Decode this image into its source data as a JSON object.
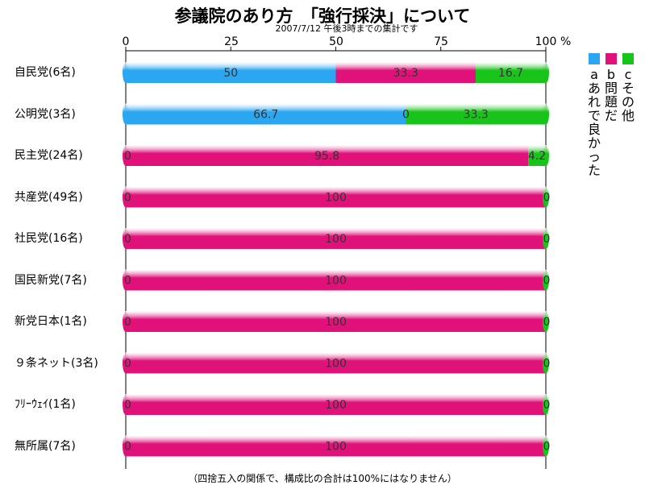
{
  "title": "参議院のあり方　「強行採決」について",
  "subtitle": "2007/7/12 午後3時までの集計です",
  "footnote": "（四捨五入の関係で、構成比の合計は100%にはなりません）",
  "colors": {
    "a": "#2aa7f0",
    "b": "#e0127a",
    "c": "#18c41a"
  },
  "legend": [
    {
      "key": "a",
      "letter": "a",
      "text": "あれで良かった"
    },
    {
      "key": "b",
      "letter": "b",
      "text": "問題だ"
    },
    {
      "key": "c",
      "letter": "c",
      "text": "その他"
    }
  ],
  "chart_data": {
    "type": "bar",
    "orientation": "horizontal",
    "stacked": true,
    "xlim": [
      0,
      100
    ],
    "xticks": [
      "0",
      "25",
      "50",
      "75",
      "100"
    ],
    "x_unit": "%",
    "categories": [
      "自民党(6名)",
      "公明党(3名)",
      "民主党(24名)",
      "共産党(49名)",
      "社民党(16名)",
      "国民新党(7名)",
      "新党日本(1名)",
      "９条ネット(3名)",
      "ﾌﾘｰｳｪｲ(1名)",
      "無所属(7名)"
    ],
    "series": [
      {
        "name": "a あれで良かった",
        "key": "a",
        "values": [
          50,
          66.7,
          0,
          0,
          0,
          0,
          0,
          0,
          0,
          0
        ]
      },
      {
        "name": "b 問題だ",
        "key": "b",
        "values": [
          33.3,
          0,
          95.8,
          100,
          100,
          100,
          100,
          100,
          100,
          100
        ]
      },
      {
        "name": "c その他",
        "key": "c",
        "values": [
          16.7,
          33.3,
          4.2,
          0,
          0,
          0,
          0,
          0,
          0,
          0
        ]
      }
    ],
    "data_labels": [
      [
        "50",
        "33.3",
        "16.7"
      ],
      [
        "66.7",
        "0",
        "33.3"
      ],
      [
        "0",
        "95.8",
        "4.2"
      ],
      [
        "0",
        "100",
        "0"
      ],
      [
        "0",
        "100",
        "0"
      ],
      [
        "0",
        "100",
        "0"
      ],
      [
        "0",
        "100",
        "0"
      ],
      [
        "0",
        "100",
        "0"
      ],
      [
        "0",
        "100",
        "0"
      ],
      [
        "0",
        "100",
        "0"
      ]
    ],
    "grid": false,
    "legend_position": "right"
  }
}
